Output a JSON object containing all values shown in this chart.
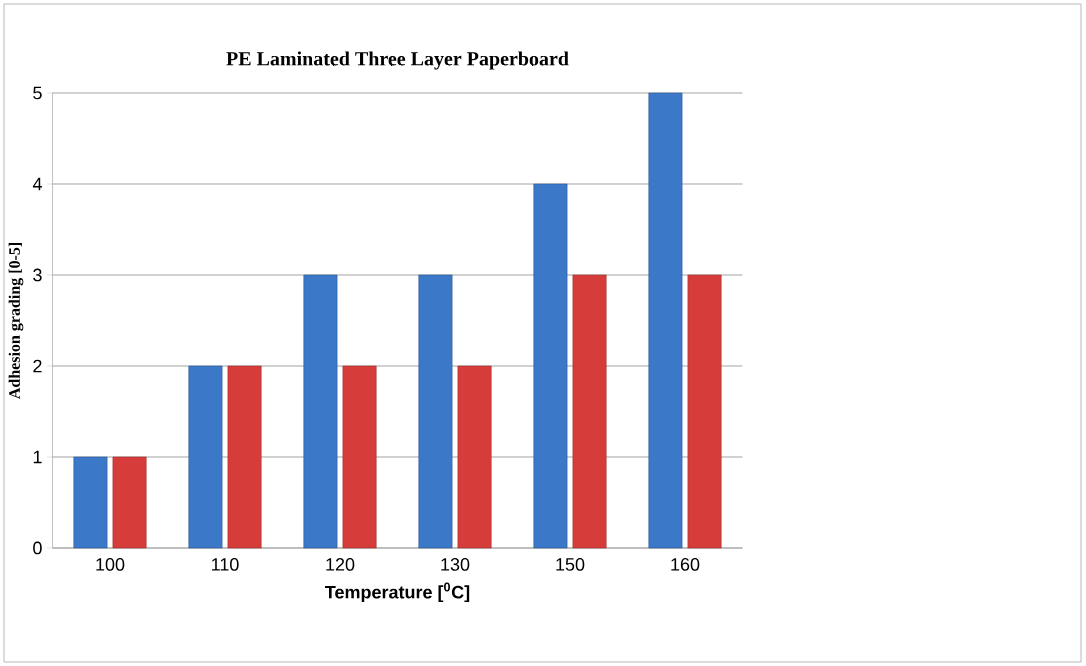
{
  "chart_data": {
    "type": "bar",
    "title": "PE Laminated Three Layer Paperboard",
    "xlabel": "Temperature [$^{0}$C]",
    "ylabel": "Adhesion grading [0-5]",
    "categories": [
      "100",
      "110",
      "120",
      "130",
      "150",
      "160"
    ],
    "series": [
      {
        "color": "#3b78c8",
        "values": [
          1,
          2,
          3,
          3,
          4,
          5
        ]
      },
      {
        "color": "#d63d3a",
        "values": [
          1,
          2,
          2,
          2,
          3,
          3
        ]
      }
    ],
    "ylim": [
      0,
      5
    ],
    "yticks": [
      0,
      1,
      2,
      3,
      4,
      5
    ],
    "grid": "y"
  }
}
